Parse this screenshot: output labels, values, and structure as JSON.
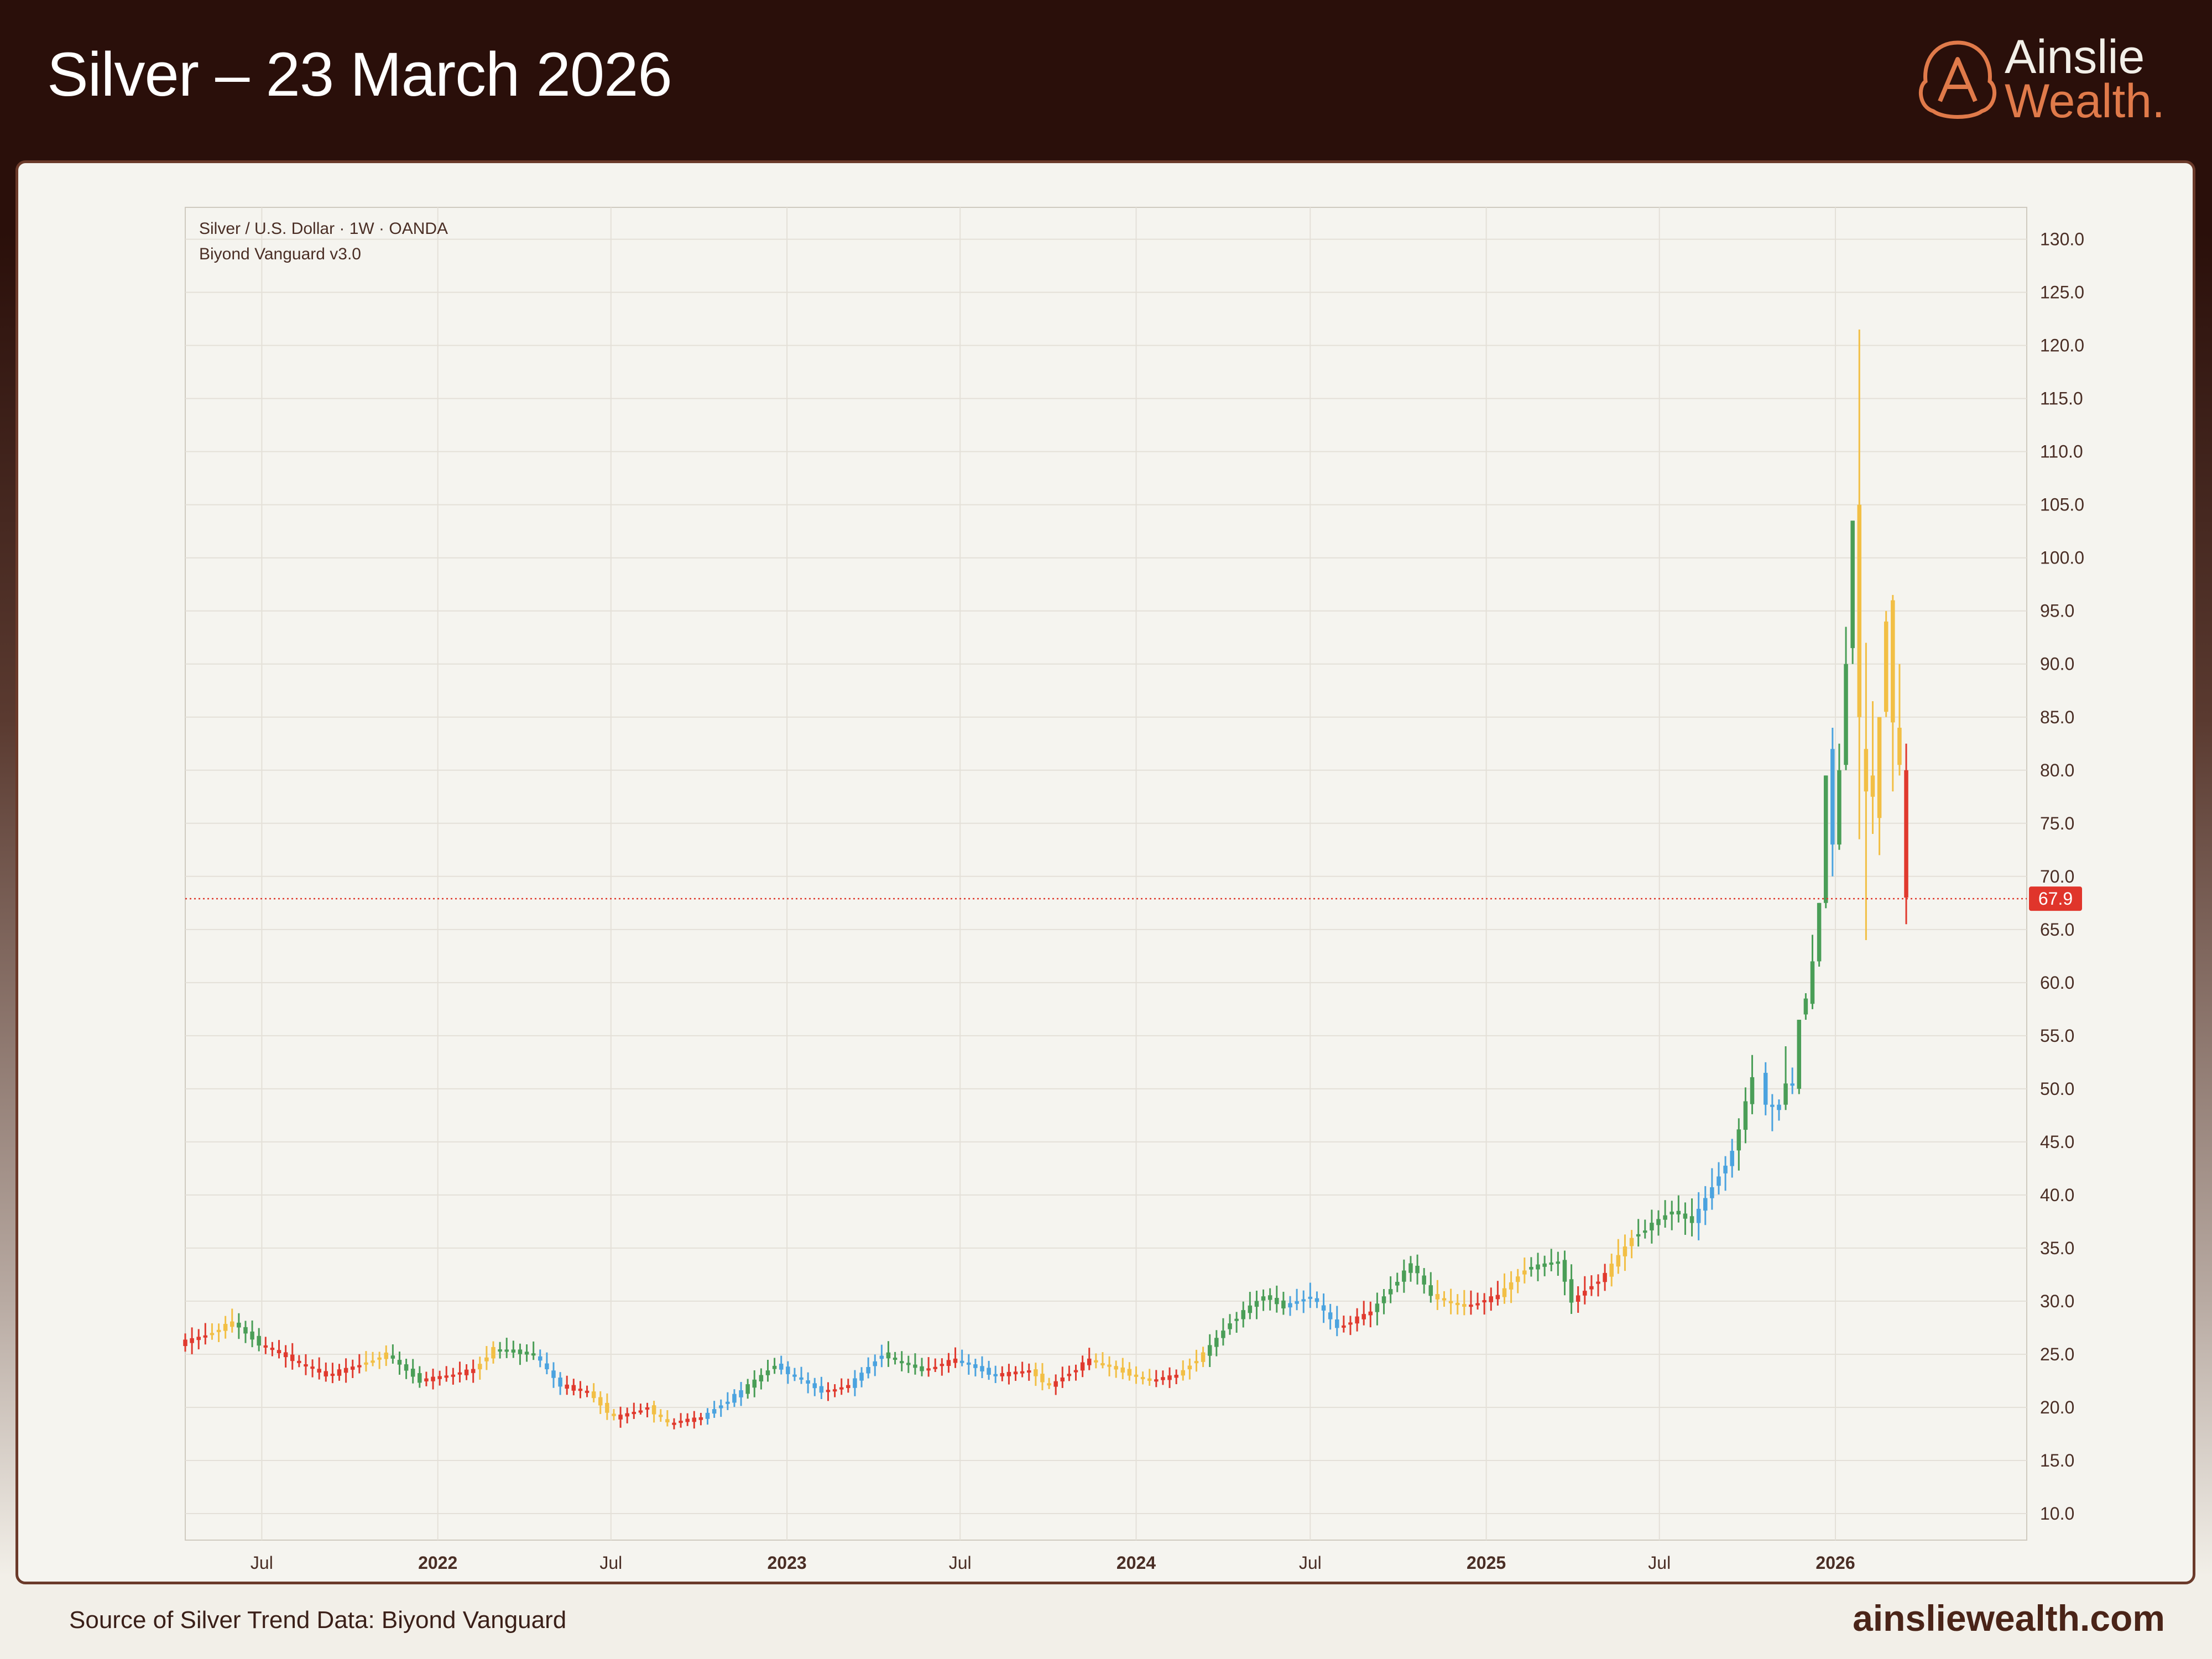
{
  "header": {
    "title": "Silver – 23 March 2026",
    "logo_line1": "Ainslie",
    "logo_line2": "Wealth."
  },
  "footer": {
    "source": "Source of Silver Trend Data: Biyond Vanguard",
    "site": "ainsliewealth.com"
  },
  "colors": {
    "green": "#4a9e57",
    "red": "#e03a2e",
    "yellow": "#f2bf45",
    "blue": "#4ba3df",
    "price_label_bg": "#e0352b"
  },
  "chart_data": {
    "type": "candlestick",
    "title": "Silver / U.S. Dollar · 1W · OANDA",
    "subtitle": "Biyond Vanguard v3.0",
    "ylim": [
      7.5,
      133
    ],
    "y_ticks": [
      "130.0",
      "125.0",
      "120.0",
      "115.0",
      "110.0",
      "105.0",
      "100.0",
      "95.0",
      "90.0",
      "85.0",
      "80.0",
      "75.0",
      "70.0",
      "65.0",
      "60.0",
      "55.0",
      "50.0",
      "45.0",
      "40.0",
      "35.0",
      "30.0",
      "25.0",
      "20.0",
      "15.0",
      "10.0"
    ],
    "x_ticks": [
      {
        "label": "Jul",
        "date": "2021-07-01",
        "bold": false
      },
      {
        "label": "2022",
        "date": "2022-01-01",
        "bold": true
      },
      {
        "label": "Jul",
        "date": "2022-07-01",
        "bold": false
      },
      {
        "label": "2023",
        "date": "2023-01-01",
        "bold": true
      },
      {
        "label": "Jul",
        "date": "2023-07-01",
        "bold": false
      },
      {
        "label": "2024",
        "date": "2024-01-01",
        "bold": true
      },
      {
        "label": "Jul",
        "date": "2024-07-01",
        "bold": false
      },
      {
        "label": "2025",
        "date": "2025-01-01",
        "bold": true
      },
      {
        "label": "Jul",
        "date": "2025-07-01",
        "bold": false
      },
      {
        "label": "2026",
        "date": "2026-01-01",
        "bold": true
      }
    ],
    "x_range": [
      "2021-04-12",
      "2026-07-20"
    ],
    "current_price": 67.9,
    "current_price_label": "67.9",
    "trend_colors": [
      "green",
      "red",
      "yellow",
      "blue"
    ],
    "anchors": [
      {
        "date": "2021-04-12",
        "price": 26.0,
        "trend": "red"
      },
      {
        "date": "2021-05-10",
        "price": 26.8,
        "trend": "yellow"
      },
      {
        "date": "2021-06-07",
        "price": 28.0,
        "trend": "green"
      },
      {
        "date": "2021-07-05",
        "price": 26.0,
        "trend": "red"
      },
      {
        "date": "2021-09-13",
        "price": 23.0,
        "trend": "red"
      },
      {
        "date": "2021-10-18",
        "price": 24.0,
        "trend": "yellow"
      },
      {
        "date": "2021-11-15",
        "price": 25.0,
        "trend": "green"
      },
      {
        "date": "2021-12-20",
        "price": 22.5,
        "trend": "red"
      },
      {
        "date": "2022-02-14",
        "price": 23.5,
        "trend": "yellow"
      },
      {
        "date": "2022-03-07",
        "price": 25.5,
        "trend": "green"
      },
      {
        "date": "2022-04-18",
        "price": 25.0,
        "trend": "blue"
      },
      {
        "date": "2022-05-16",
        "price": 22.0,
        "trend": "red"
      },
      {
        "date": "2022-06-13",
        "price": 21.5,
        "trend": "yellow"
      },
      {
        "date": "2022-07-11",
        "price": 19.0,
        "trend": "red"
      },
      {
        "date": "2022-08-15",
        "price": 20.0,
        "trend": "yellow"
      },
      {
        "date": "2022-09-05",
        "price": 18.5,
        "trend": "red"
      },
      {
        "date": "2022-10-10",
        "price": 19.0,
        "trend": "blue"
      },
      {
        "date": "2022-11-21",
        "price": 21.5,
        "trend": "green"
      },
      {
        "date": "2022-12-26",
        "price": 24.0,
        "trend": "blue"
      },
      {
        "date": "2023-02-13",
        "price": 21.5,
        "trend": "red"
      },
      {
        "date": "2023-03-13",
        "price": 22.0,
        "trend": "blue"
      },
      {
        "date": "2023-04-17",
        "price": 25.0,
        "trend": "green"
      },
      {
        "date": "2023-05-29",
        "price": 23.5,
        "trend": "red"
      },
      {
        "date": "2023-07-03",
        "price": 24.5,
        "trend": "blue"
      },
      {
        "date": "2023-08-14",
        "price": 23.0,
        "trend": "red"
      },
      {
        "date": "2023-09-18",
        "price": 23.5,
        "trend": "yellow"
      },
      {
        "date": "2023-10-09",
        "price": 22.0,
        "trend": "red"
      },
      {
        "date": "2023-11-20",
        "price": 24.5,
        "trend": "yellow"
      },
      {
        "date": "2024-01-22",
        "price": 22.5,
        "trend": "red"
      },
      {
        "date": "2024-02-19",
        "price": 23.0,
        "trend": "yellow"
      },
      {
        "date": "2024-03-18",
        "price": 25.0,
        "trend": "green"
      },
      {
        "date": "2024-04-15",
        "price": 28.0,
        "trend": "green"
      },
      {
        "date": "2024-05-20",
        "price": 30.5,
        "trend": "green"
      },
      {
        "date": "2024-06-10",
        "price": 29.5,
        "trend": "blue"
      },
      {
        "date": "2024-07-08",
        "price": 30.5,
        "trend": "blue"
      },
      {
        "date": "2024-08-05",
        "price": 27.5,
        "trend": "red"
      },
      {
        "date": "2024-09-09",
        "price": 29.0,
        "trend": "green"
      },
      {
        "date": "2024-10-21",
        "price": 33.5,
        "trend": "green"
      },
      {
        "date": "2024-11-11",
        "price": 30.5,
        "trend": "yellow"
      },
      {
        "date": "2024-12-16",
        "price": 29.5,
        "trend": "red"
      },
      {
        "date": "2025-01-20",
        "price": 30.5,
        "trend": "yellow"
      },
      {
        "date": "2025-02-17",
        "price": 33.0,
        "trend": "green"
      },
      {
        "date": "2025-03-24",
        "price": 33.8,
        "trend": "green"
      },
      {
        "date": "2025-04-07",
        "price": 30.0,
        "trend": "red"
      },
      {
        "date": "2025-05-12",
        "price": 32.5,
        "trend": "yellow"
      },
      {
        "date": "2025-06-09",
        "price": 36.0,
        "trend": "green"
      },
      {
        "date": "2025-07-21",
        "price": 38.5,
        "trend": "green"
      },
      {
        "date": "2025-08-11",
        "price": 37.5,
        "trend": "blue"
      },
      {
        "date": "2025-09-22",
        "price": 44.0,
        "trend": "green"
      },
      {
        "date": "2025-10-13",
        "price": 51.0,
        "trend": "green"
      }
    ],
    "candles": [
      {
        "date": "2025-10-20",
        "o": 51.5,
        "h": 52.5,
        "l": 47.5,
        "c": 48.5,
        "trend": "blue"
      },
      {
        "date": "2025-10-27",
        "o": 48.5,
        "h": 49.5,
        "l": 46.0,
        "c": 48.5,
        "trend": "blue"
      },
      {
        "date": "2025-11-03",
        "o": 48.5,
        "h": 49.0,
        "l": 47.0,
        "c": 48.0,
        "trend": "blue"
      },
      {
        "date": "2025-11-10",
        "o": 48.5,
        "h": 54.0,
        "l": 48.0,
        "c": 50.5,
        "trend": "green"
      },
      {
        "date": "2025-11-17",
        "o": 50.5,
        "h": 52.0,
        "l": 49.5,
        "c": 50.5,
        "trend": "blue"
      },
      {
        "date": "2025-11-24",
        "o": 50.0,
        "h": 56.5,
        "l": 49.5,
        "c": 56.5,
        "trend": "green"
      },
      {
        "date": "2025-12-01",
        "o": 57.0,
        "h": 59.0,
        "l": 56.5,
        "c": 58.5,
        "trend": "green"
      },
      {
        "date": "2025-12-08",
        "o": 58.0,
        "h": 64.5,
        "l": 57.5,
        "c": 62.0,
        "trend": "green"
      },
      {
        "date": "2025-12-15",
        "o": 62.0,
        "h": 67.5,
        "l": 61.5,
        "c": 67.5,
        "trend": "green"
      },
      {
        "date": "2025-12-22",
        "o": 67.5,
        "h": 79.5,
        "l": 67.0,
        "c": 79.5,
        "trend": "green"
      },
      {
        "date": "2025-12-29",
        "o": 82.0,
        "h": 84.0,
        "l": 70.0,
        "c": 73.0,
        "trend": "blue"
      },
      {
        "date": "2026-01-05",
        "o": 73.0,
        "h": 82.5,
        "l": 72.5,
        "c": 80.0,
        "trend": "green"
      },
      {
        "date": "2026-01-12",
        "o": 80.5,
        "h": 93.5,
        "l": 80.0,
        "c": 90.0,
        "trend": "green"
      },
      {
        "date": "2026-01-19",
        "o": 91.5,
        "h": 103.5,
        "l": 90.0,
        "c": 103.5,
        "trend": "green"
      },
      {
        "date": "2026-01-26",
        "o": 105.0,
        "h": 121.5,
        "l": 73.5,
        "c": 85.0,
        "trend": "yellow"
      },
      {
        "date": "2026-02-02",
        "o": 78.0,
        "h": 92.0,
        "l": 64.0,
        "c": 82.0,
        "trend": "yellow"
      },
      {
        "date": "2026-02-09",
        "o": 77.5,
        "h": 86.5,
        "l": 74.0,
        "c": 79.5,
        "trend": "yellow"
      },
      {
        "date": "2026-02-16",
        "o": 75.5,
        "h": 85.0,
        "l": 72.0,
        "c": 85.0,
        "trend": "yellow"
      },
      {
        "date": "2026-02-23",
        "o": 85.5,
        "h": 95.0,
        "l": 85.0,
        "c": 94.0,
        "trend": "yellow"
      },
      {
        "date": "2026-03-02",
        "o": 96.0,
        "h": 96.5,
        "l": 78.0,
        "c": 84.5,
        "trend": "yellow"
      },
      {
        "date": "2026-03-09",
        "o": 84.0,
        "h": 90.0,
        "l": 79.5,
        "c": 80.5,
        "trend": "yellow"
      },
      {
        "date": "2026-03-16",
        "o": 80.0,
        "h": 82.5,
        "l": 65.5,
        "c": 68.0,
        "trend": "red"
      }
    ]
  }
}
